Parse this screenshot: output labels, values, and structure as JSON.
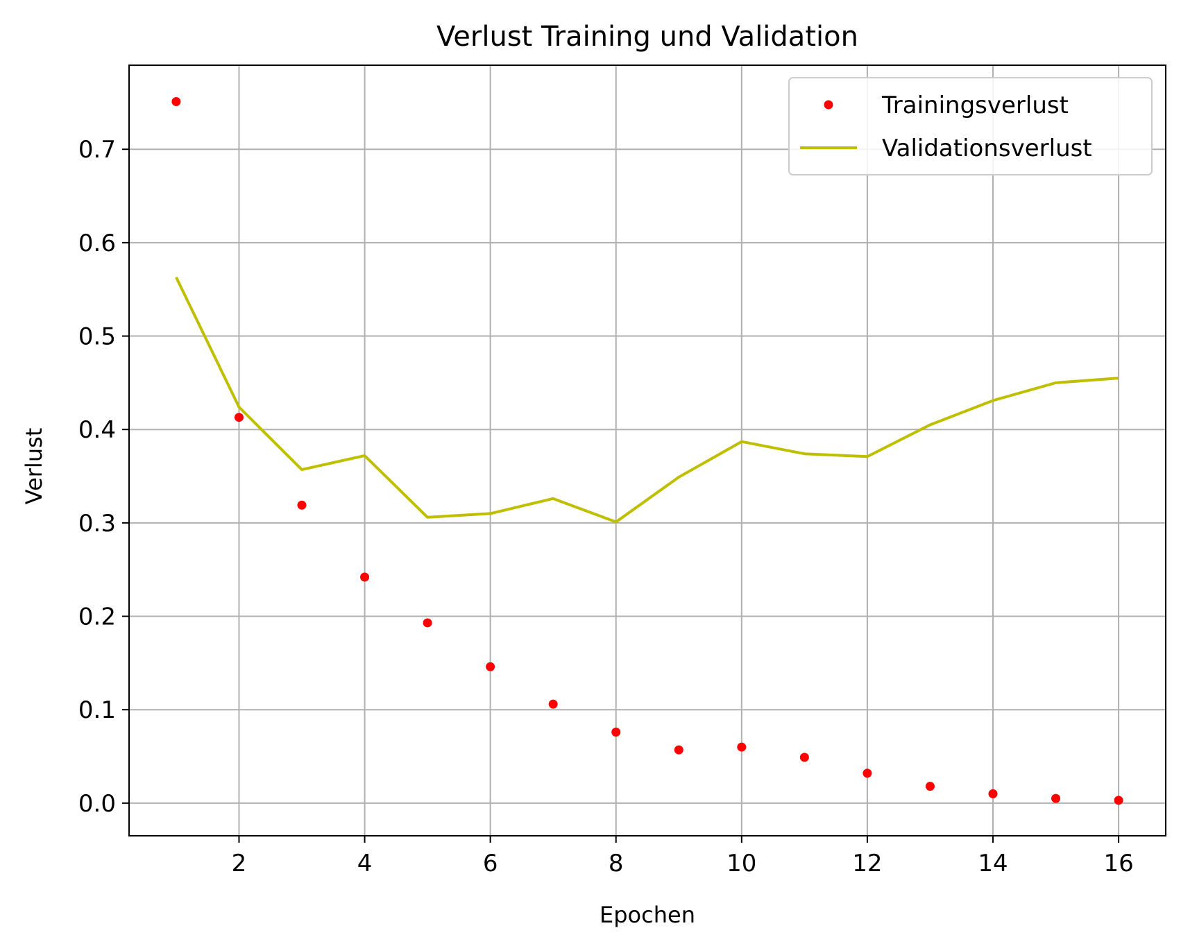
{
  "chart_data": {
    "type": "line",
    "title": "Verlust Training und Validation",
    "xlabel": "Epochen",
    "ylabel": "Verlust",
    "xlim": [
      0.25,
      16.75
    ],
    "ylim": [
      -0.035,
      0.79
    ],
    "xticks": [
      2,
      4,
      6,
      8,
      10,
      12,
      14,
      16
    ],
    "yticks": [
      0.0,
      0.1,
      0.2,
      0.3,
      0.4,
      0.5,
      0.6,
      0.7
    ],
    "ytick_labels": [
      "0.0",
      "0.1",
      "0.2",
      "0.3",
      "0.4",
      "0.5",
      "0.6",
      "0.7"
    ],
    "grid": true,
    "legend_position": "top-right",
    "x": [
      1,
      2,
      3,
      4,
      5,
      6,
      7,
      8,
      9,
      10,
      11,
      12,
      13,
      14,
      15,
      16
    ],
    "series": [
      {
        "name": "Trainingsverlust",
        "style": "markers",
        "color": "#ff0000",
        "values": [
          0.751,
          0.413,
          0.319,
          0.242,
          0.193,
          0.146,
          0.106,
          0.076,
          0.057,
          0.06,
          0.049,
          0.032,
          0.018,
          0.01,
          0.005,
          0.003
        ]
      },
      {
        "name": "Validationsverlust",
        "style": "line",
        "color": "#bfbf00",
        "values": [
          0.563,
          0.424,
          0.357,
          0.372,
          0.306,
          0.31,
          0.326,
          0.301,
          0.349,
          0.387,
          0.374,
          0.371,
          0.405,
          0.431,
          0.45,
          0.455
        ]
      }
    ]
  }
}
